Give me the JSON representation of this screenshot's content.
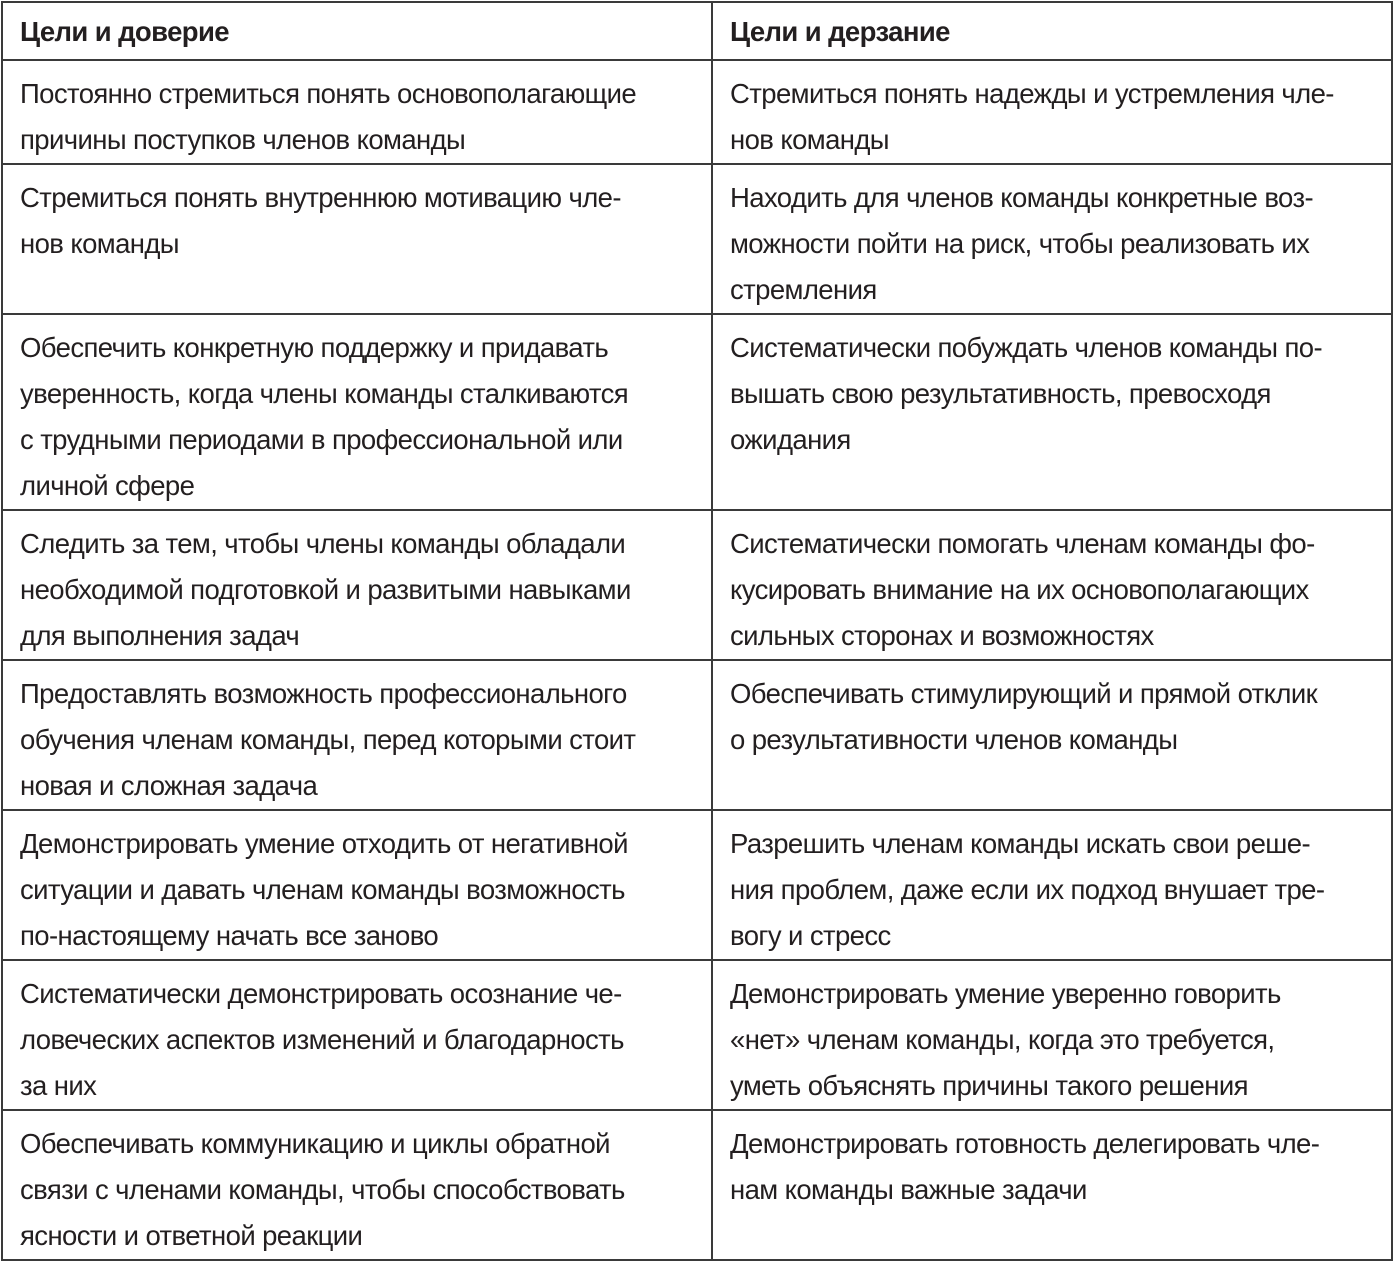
{
  "table": {
    "headers": [
      "Цели и доверие",
      "Цели и дерзание"
    ],
    "rows": [
      [
        [
          "Постоянно стремиться понять основополагающие",
          "причины поступков членов команды"
        ],
        [
          "Стремиться понять надежды и устремления чле-",
          "нов команды"
        ]
      ],
      [
        [
          "Стремиться понять внутреннюю мотивацию чле-",
          "нов команды"
        ],
        [
          "Находить для членов команды конкретные воз-",
          "можности пойти на риск, чтобы реализовать их",
          "стремления"
        ]
      ],
      [
        [
          "Обеспечить конкретную поддержку и придавать",
          "уверенность, когда члены команды сталкиваются",
          "с трудными периодами в профессиональной или",
          "личной сфере"
        ],
        [
          "Систематически побуждать членов команды по-",
          "вышать свою результативность, превосходя",
          "ожидания"
        ]
      ],
      [
        [
          "Следить за тем, чтобы члены команды обладали",
          "необходимой подготовкой и развитыми навыками",
          "для выполнения задач"
        ],
        [
          "Систематически помогать членам команды фо-",
          "кусировать внимание на их основополагающих",
          "сильных сторонах и возможностях"
        ]
      ],
      [
        [
          "Предоставлять возможность профессионального",
          "обучения членам команды, перед которыми стоит",
          "новая и сложная задача"
        ],
        [
          "Обеспечивать стимулирующий и прямой отклик",
          "о результативности членов команды"
        ]
      ],
      [
        [
          "Демонстрировать умение отходить от негативной",
          "ситуации и давать членам команды возможность",
          "по-настоящему начать все заново"
        ],
        [
          "Разрешить членам команды искать свои реше-",
          "ния проблем, даже если их подход внушает тре-",
          "вогу и стресс"
        ]
      ],
      [
        [
          "Систематически демонстрировать осознание че-",
          "ловеческих аспектов изменений и благодарность",
          "за них"
        ],
        [
          "Демонстрировать умение уверенно говорить",
          "«нет» членам команды, когда это требуется,",
          "уметь объяснять причины такого решения"
        ]
      ],
      [
        [
          "Обеспечивать коммуникацию и циклы обратной",
          "связи с членами команды, чтобы способствовать",
          "ясности и ответной реакции"
        ],
        [
          "Демонстрировать готовность делегировать чле-",
          "нам команды важные задачи"
        ]
      ]
    ]
  }
}
